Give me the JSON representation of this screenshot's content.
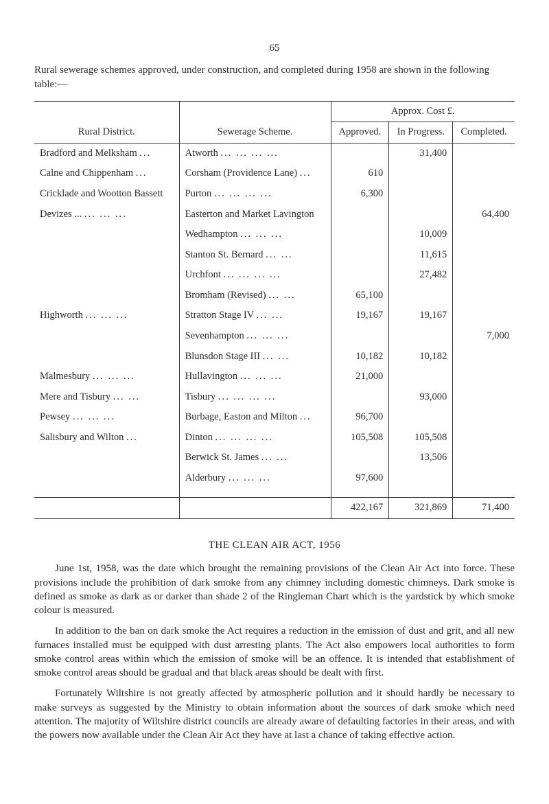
{
  "page_number": "65",
  "intro": "Rural sewerage schemes approved, under construction, and completed during 1958 are shown in the following table:—",
  "table": {
    "approx_header": "Approx. Cost £.",
    "col_headers": {
      "district": "Rural District.",
      "scheme": "Sewerage Scheme.",
      "approved": "Approved.",
      "in_progress": "In Progress.",
      "completed": "Completed."
    },
    "rows": [
      {
        "district": "Bradford and Melksham",
        "district_dots": "...",
        "scheme": "Atworth",
        "scheme_dots": "...   ...   ...   ...",
        "approved": "",
        "in_progress": "31,400",
        "completed": ""
      },
      {
        "district": "Calne and Chippenham",
        "district_dots": "...",
        "scheme": "Corsham (Providence Lane)",
        "scheme_dots": "...",
        "approved": "610",
        "in_progress": "",
        "completed": ""
      },
      {
        "district": "Cricklade and Wootton Bassett",
        "district_dots": "",
        "scheme": "Purton",
        "scheme_dots": "...   ...   ...   ...",
        "approved": "6,300",
        "in_progress": "",
        "completed": ""
      },
      {
        "district": "Devizes ...",
        "district_dots": "...   ...   ...",
        "scheme": "Easterton and Market Lavington",
        "scheme_dots": "",
        "approved": "",
        "in_progress": "",
        "completed": "64,400"
      },
      {
        "district": "",
        "district_dots": "",
        "scheme": "Wedhampton",
        "scheme_dots": "...   ...   ...",
        "approved": "",
        "in_progress": "10,009",
        "completed": ""
      },
      {
        "district": "",
        "district_dots": "",
        "scheme": "Stanton St. Bernard",
        "scheme_dots": "...   ...",
        "approved": "",
        "in_progress": "11,615",
        "completed": ""
      },
      {
        "district": "",
        "district_dots": "",
        "scheme": "Urchfont",
        "scheme_dots": "...   ...   ...   ...",
        "approved": "",
        "in_progress": "27,482",
        "completed": ""
      },
      {
        "district": "",
        "district_dots": "",
        "scheme": "Bromham (Revised)",
        "scheme_dots": "...   ...",
        "approved": "65,100",
        "in_progress": "",
        "completed": ""
      },
      {
        "district": "Highworth",
        "district_dots": "...   ...   ...",
        "scheme": "Stratton Stage IV",
        "scheme_dots": "...   ...",
        "approved": "19,167",
        "in_progress": "19,167",
        "completed": ""
      },
      {
        "district": "",
        "district_dots": "",
        "scheme": "Sevenhampton",
        "scheme_dots": "...   ...   ...",
        "approved": "",
        "in_progress": "",
        "completed": "7,000"
      },
      {
        "district": "",
        "district_dots": "",
        "scheme": "Blunsdon Stage III",
        "scheme_dots": "...   ...",
        "approved": "10,182",
        "in_progress": "10,182",
        "completed": ""
      },
      {
        "district": "Malmesbury",
        "district_dots": "...   ...   ...",
        "scheme": "Hullavington",
        "scheme_dots": "...   ...   ...",
        "approved": "21,000",
        "in_progress": "",
        "completed": ""
      },
      {
        "district": "Mere and Tisbury",
        "district_dots": "...   ...",
        "scheme": "Tisbury",
        "scheme_dots": "...   ...   ...   ...",
        "approved": "",
        "in_progress": "93,000",
        "completed": ""
      },
      {
        "district": "Pewsey",
        "district_dots": "...   ...   ...",
        "scheme": "Burbage, Easton and Milton",
        "scheme_dots": "...",
        "approved": "96,700",
        "in_progress": "",
        "completed": ""
      },
      {
        "district": "Salisbury and Wilton",
        "district_dots": "...",
        "scheme": "Dinton",
        "scheme_dots": "...   ...   ...   ...",
        "approved": "105,508",
        "in_progress": "105,508",
        "completed": ""
      },
      {
        "district": "",
        "district_dots": "",
        "scheme": "Berwick St. James",
        "scheme_dots": "...   ...",
        "approved": "",
        "in_progress": "13,506",
        "completed": ""
      },
      {
        "district": "",
        "district_dots": "",
        "scheme": "Alderbury",
        "scheme_dots": "...   ...   ...",
        "approved": "97,600",
        "in_progress": "",
        "completed": ""
      }
    ],
    "totals": {
      "approved": "422,167",
      "in_progress": "321,869",
      "completed": "71,400"
    }
  },
  "section_heading": "THE CLEAN AIR ACT, 1956",
  "paragraphs": [
    "June 1st, 1958, was the date which brought the remaining provisions of the Clean Air Act into force. These provisions include the prohibition of dark smoke from any chimney including domestic chimneys. Dark smoke is defined as smoke as dark as or darker than shade 2 of the Ringleman Chart which is the yardstick by which smoke colour is measured.",
    "In addition to the ban on dark smoke the Act requires a reduction in the emission of dust and grit, and all new furnaces installed must be equipped with dust arresting plants. The Act also empowers local authorities to form smoke control areas within which the emission of smoke will be an offence. It is intended that establishment of smoke control areas should be gradual and that black areas should be dealt with first.",
    "Fortunately Wiltshire is not greatly affected by atmospheric pollution and it should hardly be necessary to make surveys as suggested by the Ministry to obtain information about the sources of dark smoke which need attention. The majority of Wiltshire district councils are already aware of defaulting factories in their areas, and with the powers now available under the Clean Air Act they have at last a chance of taking effective action."
  ]
}
